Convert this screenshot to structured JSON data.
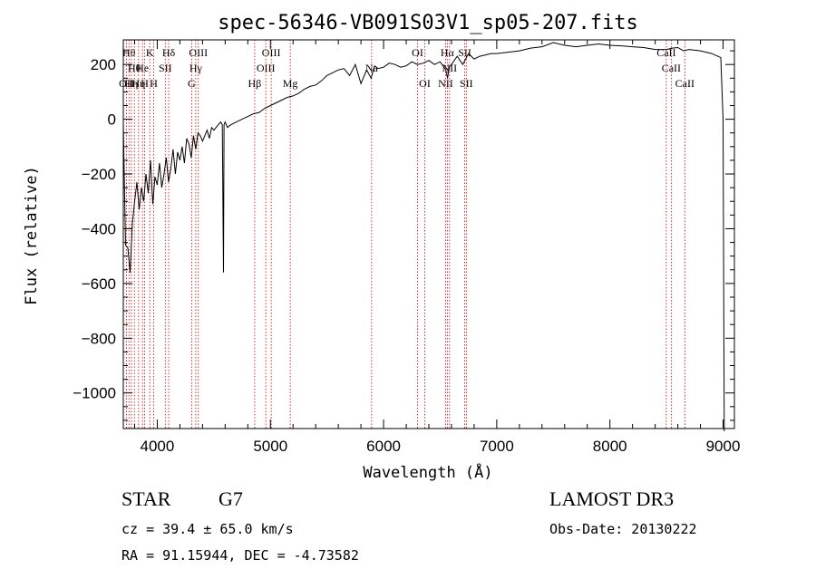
{
  "chart_data": {
    "type": "line",
    "title": "spec-56346-VB091S03V1_sp05-207.fits",
    "xlabel": "Wavelength (Å)",
    "ylabel": "Flux (relative)",
    "xlim": [
      3700,
      9100
    ],
    "ylim": [
      -1130,
      290
    ],
    "x_ticks": [
      4000,
      5000,
      6000,
      7000,
      8000,
      9000
    ],
    "x_tick_labels": [
      "4000",
      "5000",
      "6000",
      "7000",
      "8000",
      "9000"
    ],
    "y_ticks": [
      -1000,
      -800,
      -600,
      -400,
      -200,
      0,
      200
    ],
    "y_tick_labels": [
      "−1000",
      "−800",
      "−600",
      "−400",
      "−200",
      "0",
      "200"
    ],
    "series": [
      {
        "name": "flux",
        "x": [
          3700,
          3720,
          3740,
          3760,
          3780,
          3800,
          3820,
          3840,
          3860,
          3880,
          3900,
          3920,
          3940,
          3960,
          3980,
          4000,
          4020,
          4040,
          4060,
          4080,
          4100,
          4120,
          4140,
          4160,
          4180,
          4200,
          4220,
          4240,
          4260,
          4280,
          4300,
          4320,
          4340,
          4360,
          4380,
          4400,
          4420,
          4440,
          4460,
          4480,
          4500,
          4520,
          4540,
          4560,
          4575,
          4585,
          4590,
          4600,
          4620,
          4650,
          4700,
          4750,
          4800,
          4850,
          4900,
          4950,
          5000,
          5050,
          5100,
          5150,
          5200,
          5250,
          5300,
          5350,
          5400,
          5450,
          5500,
          5550,
          5600,
          5650,
          5700,
          5750,
          5800,
          5850,
          5890,
          5920,
          5950,
          6000,
          6050,
          6100,
          6150,
          6200,
          6250,
          6300,
          6350,
          6400,
          6450,
          6500,
          6550,
          6565,
          6580,
          6600,
          6650,
          6700,
          6750,
          6800,
          6850,
          6900,
          6950,
          7000,
          7100,
          7200,
          7300,
          7400,
          7500,
          7600,
          7700,
          7800,
          7900,
          8000,
          8100,
          8200,
          8300,
          8400,
          8500,
          8550,
          8600,
          8650,
          8700,
          8800,
          8900,
          8980,
          9000,
          9010
        ],
        "y": [
          -20,
          -460,
          -470,
          -560,
          -380,
          -300,
          -230,
          -330,
          -250,
          -300,
          -200,
          -270,
          -150,
          -310,
          -210,
          -240,
          -160,
          -250,
          -200,
          -140,
          -230,
          -180,
          -110,
          -200,
          -120,
          -150,
          -100,
          -160,
          -70,
          -90,
          -140,
          -60,
          -110,
          -50,
          -60,
          -80,
          -60,
          -40,
          -70,
          -30,
          -40,
          -30,
          -20,
          -10,
          -20,
          -560,
          -20,
          -10,
          -30,
          -20,
          -10,
          0,
          10,
          20,
          25,
          40,
          50,
          60,
          70,
          80,
          85,
          95,
          110,
          120,
          125,
          140,
          160,
          170,
          180,
          185,
          160,
          200,
          130,
          180,
          150,
          195,
          185,
          190,
          205,
          200,
          190,
          195,
          210,
          200,
          205,
          215,
          200,
          210,
          180,
          150,
          190,
          200,
          230,
          200,
          240,
          220,
          230,
          235,
          240,
          240,
          245,
          250,
          260,
          265,
          280,
          270,
          265,
          270,
          275,
          270,
          268,
          265,
          262,
          255,
          255,
          260,
          262,
          250,
          255,
          250,
          240,
          225,
          0,
          -1140
        ]
      }
    ],
    "lines": [
      {
        "x": 3728,
        "label": "OII",
        "row": 3
      },
      {
        "x": 3750,
        "label": "Hθ",
        "row": 1
      },
      {
        "x": 3771,
        "label": "Hη",
        "row": 3
      },
      {
        "x": 3798,
        "label": "Hθ",
        "row": 2
      },
      {
        "x": 3835,
        "label": "Hη",
        "row": 3
      },
      {
        "x": 3869,
        "label": "He",
        "row": 2
      },
      {
        "x": 3889,
        "label": "H",
        "row": 3
      },
      {
        "x": 3934,
        "label": "K",
        "row": 1
      },
      {
        "x": 3969,
        "label": "H",
        "row": 3
      },
      {
        "x": 4071,
        "label": "SII",
        "row": 2
      },
      {
        "x": 4101,
        "label": "Hδ",
        "row": 1
      },
      {
        "x": 4304,
        "label": "G",
        "row": 3
      },
      {
        "x": 4340,
        "label": "Hγ",
        "row": 2
      },
      {
        "x": 4363,
        "label": "OIII",
        "row": 1
      },
      {
        "x": 4861,
        "label": "Hβ",
        "row": 3
      },
      {
        "x": 4959,
        "label": "OIII",
        "row": 2
      },
      {
        "x": 5007,
        "label": "OIII",
        "row": 1
      },
      {
        "x": 5175,
        "label": "Mg",
        "row": 3
      },
      {
        "x": 5894,
        "label": "Na",
        "row": 2
      },
      {
        "x": 6300,
        "label": "OI",
        "row": 1
      },
      {
        "x": 6364,
        "label": "OI",
        "row": 3
      },
      {
        "x": 6548,
        "label": "NII",
        "row": 3
      },
      {
        "x": 6563,
        "label": "Hα",
        "row": 1
      },
      {
        "x": 6583,
        "label": "NII",
        "row": 2
      },
      {
        "x": 6717,
        "label": "SII",
        "row": 1
      },
      {
        "x": 6731,
        "label": "SII",
        "row": 3
      },
      {
        "x": 8498,
        "label": "CaII",
        "row": 1
      },
      {
        "x": 8542,
        "label": "CaII",
        "row": 2
      },
      {
        "x": 8662,
        "label": "CaII",
        "row": 3
      }
    ]
  },
  "info": {
    "class": "STAR",
    "subclass": "G7",
    "survey": "LAMOST DR3",
    "cz": "cz = 39.4 ± 65.0 km/s",
    "obs_date": "Obs-Date: 20130222",
    "radec": "RA =  91.15944, DEC =  -4.73582"
  },
  "colors": {
    "line_marker": "#cc0000",
    "spectrum": "#000000",
    "background": "#ffffff"
  }
}
